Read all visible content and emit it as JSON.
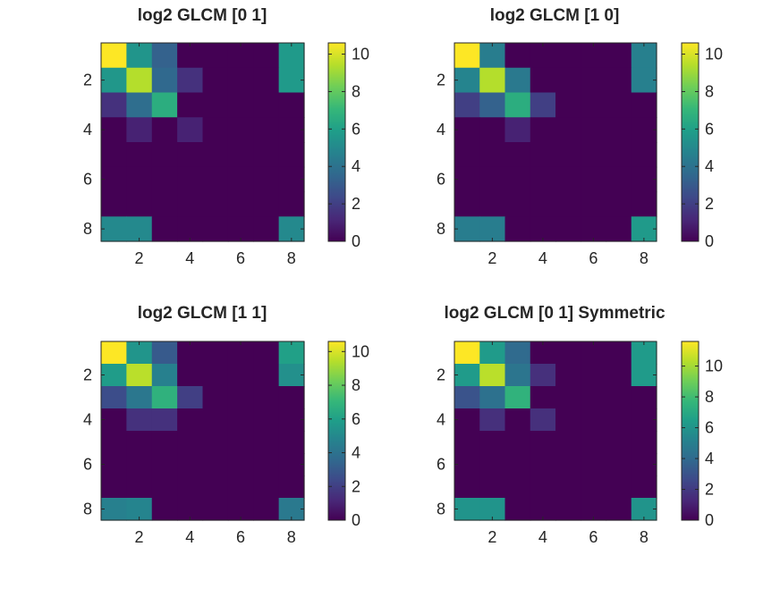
{
  "figure": {
    "background": "#ffffff"
  },
  "colormap": [
    "#440154",
    "#482878",
    "#3e4989",
    "#31688e",
    "#26828e",
    "#1f9e89",
    "#35b779",
    "#6ece58",
    "#b5de2b",
    "#fde725"
  ],
  "chart_data": [
    {
      "type": "heatmap",
      "title": "log2 GLCM [0 1]",
      "xticks": [
        "2",
        "4",
        "6",
        "8"
      ],
      "yticks": [
        "2",
        "4",
        "6",
        "8"
      ],
      "clim": [
        0,
        10.6
      ],
      "colorbar_ticks": [
        "0",
        "2",
        "4",
        "6",
        "8",
        "10"
      ],
      "colorbar_values": [
        0,
        2,
        4,
        6,
        8,
        10
      ],
      "matrix": [
        [
          10.6,
          5.5,
          3.3,
          0,
          0,
          0,
          0,
          5.7
        ],
        [
          5.6,
          9.4,
          3.6,
          1.5,
          0,
          0,
          0,
          5.7
        ],
        [
          1.5,
          3.8,
          6.6,
          0,
          0,
          0,
          0,
          0
        ],
        [
          0,
          1,
          0,
          1,
          0,
          0,
          0,
          0
        ],
        [
          0,
          0,
          0,
          0,
          0,
          0,
          0,
          0
        ],
        [
          0,
          0,
          0,
          0,
          0,
          0,
          0,
          0
        ],
        [
          0,
          0,
          0,
          0,
          0,
          0,
          0,
          0
        ],
        [
          5,
          5,
          0,
          0,
          0,
          0,
          0,
          5
        ]
      ]
    },
    {
      "type": "heatmap",
      "title": "log2 GLCM [1 0]",
      "xticks": [
        "2",
        "4",
        "6",
        "8"
      ],
      "yticks": [
        "2",
        "4",
        "6",
        "8"
      ],
      "clim": [
        0,
        10.6
      ],
      "colorbar_ticks": [
        "0",
        "2",
        "4",
        "6",
        "8",
        "10"
      ],
      "colorbar_values": [
        0,
        2,
        4,
        6,
        8,
        10
      ],
      "matrix": [
        [
          10.6,
          4.5,
          0,
          0,
          0,
          0,
          0,
          4.6
        ],
        [
          4.8,
          9.4,
          4.3,
          0,
          0,
          0,
          0,
          4.6
        ],
        [
          2,
          3.3,
          6.6,
          2,
          0,
          0,
          0,
          0
        ],
        [
          0,
          0,
          1,
          0,
          0,
          0,
          0,
          0
        ],
        [
          0,
          0,
          0,
          0,
          0,
          0,
          0,
          0
        ],
        [
          0,
          0,
          0,
          0,
          0,
          0,
          0,
          0
        ],
        [
          0,
          0,
          0,
          0,
          0,
          0,
          0,
          0
        ],
        [
          4.5,
          4.5,
          0,
          0,
          0,
          0,
          0,
          5.7
        ]
      ]
    },
    {
      "type": "heatmap",
      "title": "log2 GLCM [1 1]",
      "xticks": [
        "2",
        "4",
        "6",
        "8"
      ],
      "yticks": [
        "2",
        "4",
        "6",
        "8"
      ],
      "clim": [
        0,
        10.6
      ],
      "colorbar_ticks": [
        "0",
        "2",
        "4",
        "6",
        "8",
        "10"
      ],
      "colorbar_values": [
        0,
        2,
        4,
        6,
        8,
        10
      ],
      "matrix": [
        [
          10.6,
          5.5,
          3,
          0,
          0,
          0,
          0,
          6
        ],
        [
          5.8,
          9.5,
          4.6,
          0,
          0,
          0,
          0,
          5.3
        ],
        [
          2.5,
          4.2,
          6.8,
          2,
          0,
          0,
          0,
          0
        ],
        [
          0,
          1.5,
          1.5,
          0,
          0,
          0,
          0,
          0
        ],
        [
          0,
          0,
          0,
          0,
          0,
          0,
          0,
          0
        ],
        [
          0,
          0,
          0,
          0,
          0,
          0,
          0,
          0
        ],
        [
          0,
          0,
          0,
          0,
          0,
          0,
          0,
          0
        ],
        [
          4.6,
          4.8,
          0,
          0,
          0,
          0,
          0,
          4.3
        ]
      ]
    },
    {
      "type": "heatmap",
      "title": "log2 GLCM [0 1] Symmetric",
      "xticks": [
        "2",
        "4",
        "6",
        "8"
      ],
      "yticks": [
        "2",
        "4",
        "6",
        "8"
      ],
      "clim": [
        0,
        11.6
      ],
      "colorbar_ticks": [
        "0",
        "2",
        "4",
        "6",
        "8",
        "10"
      ],
      "colorbar_values": [
        0,
        2,
        4,
        6,
        8,
        10
      ],
      "matrix": [
        [
          11.6,
          6.3,
          4,
          0,
          0,
          0,
          0,
          6.3
        ],
        [
          6.3,
          10.4,
          4.5,
          1.6,
          0,
          0,
          0,
          6.3
        ],
        [
          3,
          4.3,
          7.5,
          0,
          0,
          0,
          0,
          0
        ],
        [
          0,
          1.6,
          0,
          1.6,
          0,
          0,
          0,
          0
        ],
        [
          0,
          0,
          0,
          0,
          0,
          0,
          0,
          0
        ],
        [
          0,
          0,
          0,
          0,
          0,
          0,
          0,
          0
        ],
        [
          0,
          0,
          0,
          0,
          0,
          0,
          0,
          0
        ],
        [
          6,
          6,
          0,
          0,
          0,
          0,
          0,
          6
        ]
      ]
    }
  ]
}
